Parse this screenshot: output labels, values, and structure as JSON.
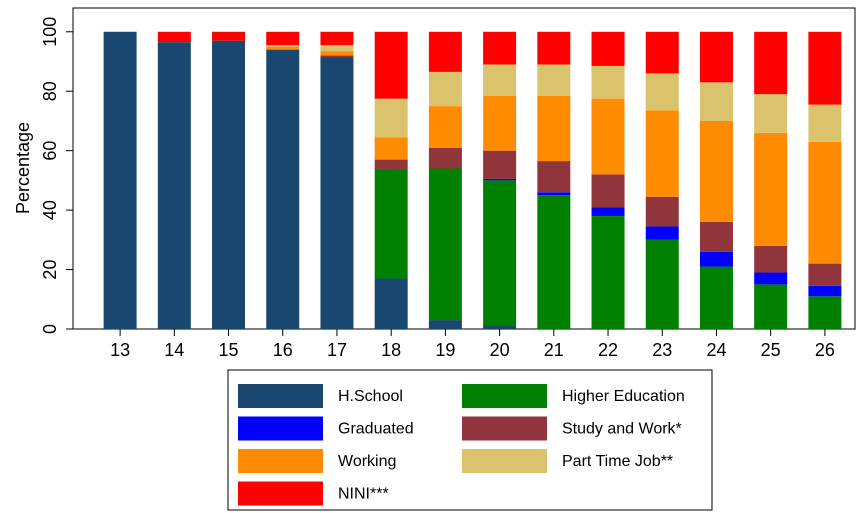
{
  "chart_data": {
    "type": "stacked_bar",
    "y_label": "Percentage",
    "categories": [
      "13",
      "14",
      "15",
      "16",
      "17",
      "18",
      "19",
      "20",
      "21",
      "22",
      "23",
      "24",
      "25",
      "26"
    ],
    "ylim": [
      0,
      108
    ],
    "yticks": [
      0,
      20,
      40,
      60,
      80,
      100
    ],
    "series": [
      {
        "name": "H.School",
        "color": "#1a476f",
        "values": [
          100,
          96.5,
          97,
          94,
          91.5,
          17,
          3,
          1,
          0,
          0,
          0,
          0,
          0,
          0
        ]
      },
      {
        "name": "Higher Education",
        "color": "#008000",
        "values": [
          0,
          0,
          0,
          0,
          0,
          36.5,
          51,
          49,
          45,
          38,
          30,
          21,
          15,
          11
        ]
      },
      {
        "name": "Graduated",
        "color": "#0000ff",
        "values": [
          0,
          0,
          0,
          0,
          0,
          0,
          0,
          0.5,
          1,
          3,
          4.5,
          5,
          4,
          3.5
        ]
      },
      {
        "name": "Study and Work*",
        "color": "#90353b",
        "values": [
          0,
          0,
          0,
          0,
          0.5,
          3.5,
          7,
          9.5,
          10.5,
          11,
          10,
          10,
          9,
          7.5
        ]
      },
      {
        "name": "Working",
        "color": "#ff8c00",
        "values": [
          0,
          0,
          0,
          1,
          1.5,
          7.5,
          14,
          18.5,
          22,
          25.5,
          29,
          34,
          38,
          41
        ]
      },
      {
        "name": "Part Time Job**",
        "color": "#dbc36e",
        "values": [
          0,
          0,
          0,
          0.5,
          2,
          13,
          11.5,
          10.5,
          10.5,
          11,
          12.5,
          13,
          13,
          12.5
        ]
      },
      {
        "name": "NINI***",
        "color": "#ff0000",
        "values": [
          0,
          3.5,
          3,
          4.5,
          4.5,
          22.5,
          13.5,
          11,
          11,
          11.5,
          14,
          17,
          21,
          24.5
        ]
      }
    ]
  }
}
